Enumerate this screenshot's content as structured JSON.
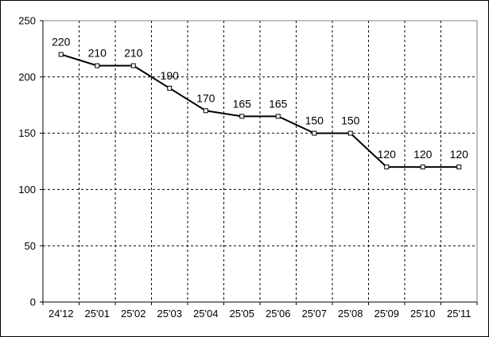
{
  "chart_data": {
    "type": "line",
    "title": "",
    "xlabel": "",
    "ylabel": "",
    "categories": [
      "24'12",
      "25'01",
      "25'02",
      "25'03",
      "25'04",
      "25'05",
      "25'06",
      "25'07",
      "25'08",
      "25'09",
      "25'10",
      "25'11"
    ],
    "series": [
      {
        "name": "",
        "values": [
          220,
          210,
          210,
          190,
          170,
          165,
          165,
          150,
          150,
          120,
          120,
          120
        ]
      }
    ],
    "data_labels": [
      "220",
      "210",
      "210",
      "190",
      "170",
      "165",
      "165",
      "150",
      "150",
      "120",
      "120",
      "120"
    ],
    "ylim": [
      0,
      250
    ],
    "yticks": [
      0,
      50,
      100,
      150,
      200,
      250
    ],
    "ytick_labels": [
      "0",
      "50",
      "100",
      "150",
      "200",
      "250"
    ],
    "grid": "dashed horizontal and vertical",
    "legend": "none",
    "marker": "open-square"
  },
  "colors": {
    "background": "#ffffff",
    "outer_border": "#000000",
    "plot_border": "#808080",
    "axis": "#000000",
    "gridline": "#000000",
    "line": "#000000",
    "marker_fill": "#ffffff",
    "marker_stroke": "#000000",
    "text": "#000000"
  }
}
